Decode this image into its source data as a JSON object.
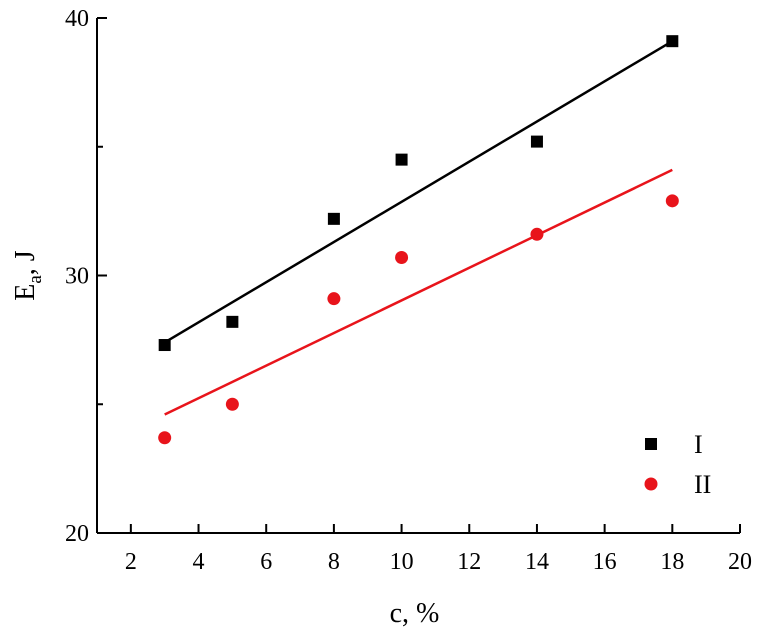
{
  "chart_data": {
    "type": "scatter",
    "title": "",
    "xlabel": "c, %",
    "ylabel": {
      "main": "E",
      "sub": "a",
      "rest": ", J"
    },
    "xlim": [
      1,
      20
    ],
    "ylim": [
      20,
      40
    ],
    "x_ticks": [
      2,
      4,
      6,
      8,
      10,
      12,
      14,
      16,
      18,
      20
    ],
    "y_ticks_labeled": [
      20,
      30,
      40
    ],
    "y_ticks_minor": [
      25,
      35
    ],
    "grid": false,
    "legend_position": "bottom-right",
    "series": [
      {
        "name": "I",
        "marker": "square",
        "color": "#000000",
        "x": [
          3,
          5,
          8,
          10,
          14,
          18
        ],
        "y": [
          27.3,
          28.2,
          32.2,
          34.5,
          35.2,
          39.1
        ],
        "fit_line": {
          "x": [
            3,
            18
          ],
          "y": [
            27.4,
            39.1
          ]
        }
      },
      {
        "name": "II",
        "marker": "circle",
        "color": "#e8141b",
        "x": [
          3,
          5,
          8,
          10,
          14,
          18
        ],
        "y": [
          23.7,
          25.0,
          29.1,
          30.7,
          31.6,
          32.9
        ],
        "fit_line": {
          "x": [
            3,
            18
          ],
          "y": [
            24.6,
            34.1
          ]
        }
      }
    ]
  }
}
